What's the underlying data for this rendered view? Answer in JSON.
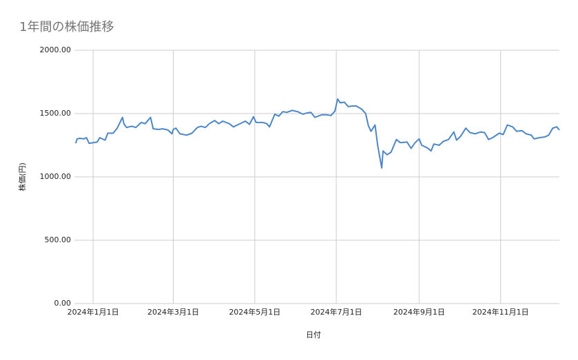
{
  "chart_data": {
    "type": "line",
    "title": "1年間の株価推移",
    "x_label": "日付",
    "y_label": "株価(円)",
    "color": "#4a86c8",
    "grid": true,
    "xlim": [
      "2023-12-18",
      "2024-12-15"
    ],
    "xticks": [
      {
        "value": "2024-01-01",
        "label": "2024年1月1日"
      },
      {
        "value": "2024-03-01",
        "label": "2024年3月1日"
      },
      {
        "value": "2024-05-01",
        "label": "2024年5月1日"
      },
      {
        "value": "2024-07-01",
        "label": "2024年7月1日"
      },
      {
        "value": "2024-09-01",
        "label": "2024年9月1日"
      },
      {
        "value": "2024-11-01",
        "label": "2024年11月1日"
      }
    ],
    "ylim": [
      0,
      2000
    ],
    "yticks": [
      {
        "value": 0,
        "label": "0.00"
      },
      {
        "value": 500,
        "label": "500.00"
      },
      {
        "value": 1000,
        "label": "1000.00"
      },
      {
        "value": 1500,
        "label": "1500.00"
      },
      {
        "value": 2000,
        "label": "2000.00"
      }
    ],
    "x": [
      "2023-12-19",
      "2023-12-20",
      "2023-12-22",
      "2023-12-25",
      "2023-12-27",
      "2023-12-29",
      "2024-01-04",
      "2024-01-06",
      "2024-01-10",
      "2024-01-12",
      "2024-01-16",
      "2024-01-19",
      "2024-01-23",
      "2024-01-24",
      "2024-01-26",
      "2024-01-30",
      "2024-02-02",
      "2024-02-06",
      "2024-02-09",
      "2024-02-13",
      "2024-02-15",
      "2024-02-19",
      "2024-02-22",
      "2024-02-26",
      "2024-02-29",
      "2024-03-01",
      "2024-03-03",
      "2024-03-06",
      "2024-03-11",
      "2024-03-15",
      "2024-03-19",
      "2024-03-22",
      "2024-03-25",
      "2024-03-28",
      "2024-04-01",
      "2024-04-04",
      "2024-04-07",
      "2024-04-12",
      "2024-04-15",
      "2024-04-19",
      "2024-04-24",
      "2024-04-27",
      "2024-04-30",
      "2024-05-02",
      "2024-05-07",
      "2024-05-10",
      "2024-05-12",
      "2024-05-16",
      "2024-05-19",
      "2024-05-22",
      "2024-05-25",
      "2024-05-29",
      "2024-06-02",
      "2024-06-06",
      "2024-06-09",
      "2024-06-12",
      "2024-06-15",
      "2024-06-20",
      "2024-06-24",
      "2024-06-27",
      "2024-06-30",
      "2024-07-02",
      "2024-07-04",
      "2024-07-07",
      "2024-07-10",
      "2024-07-13",
      "2024-07-16",
      "2024-07-20",
      "2024-07-23",
      "2024-07-25",
      "2024-07-27",
      "2024-07-30",
      "2024-08-01",
      "2024-08-04",
      "2024-08-05",
      "2024-08-08",
      "2024-08-11",
      "2024-08-15",
      "2024-08-18",
      "2024-08-23",
      "2024-08-26",
      "2024-08-29",
      "2024-09-01",
      "2024-09-03",
      "2024-09-07",
      "2024-09-10",
      "2024-09-12",
      "2024-09-16",
      "2024-09-19",
      "2024-09-23",
      "2024-09-27",
      "2024-09-29",
      "2024-10-02",
      "2024-10-06",
      "2024-10-09",
      "2024-10-13",
      "2024-10-17",
      "2024-10-20",
      "2024-10-23",
      "2024-10-26",
      "2024-10-31",
      "2024-11-03",
      "2024-11-06",
      "2024-11-10",
      "2024-11-13",
      "2024-11-17",
      "2024-11-20",
      "2024-11-24",
      "2024-11-26",
      "2024-11-30",
      "2024-12-04",
      "2024-12-07",
      "2024-12-10",
      "2024-12-13",
      "2024-12-15"
    ],
    "values": [
      1265,
      1300,
      1305,
      1300,
      1310,
      1265,
      1275,
      1310,
      1290,
      1345,
      1345,
      1385,
      1470,
      1420,
      1390,
      1400,
      1390,
      1430,
      1420,
      1470,
      1380,
      1375,
      1380,
      1370,
      1340,
      1375,
      1385,
      1340,
      1330,
      1345,
      1390,
      1400,
      1390,
      1420,
      1445,
      1420,
      1440,
      1420,
      1395,
      1415,
      1440,
      1415,
      1475,
      1430,
      1430,
      1420,
      1395,
      1495,
      1480,
      1515,
      1510,
      1525,
      1515,
      1495,
      1505,
      1510,
      1470,
      1490,
      1490,
      1485,
      1520,
      1615,
      1585,
      1590,
      1555,
      1560,
      1560,
      1535,
      1500,
      1405,
      1360,
      1410,
      1250,
      1070,
      1205,
      1175,
      1195,
      1295,
      1270,
      1275,
      1225,
      1270,
      1300,
      1250,
      1230,
      1205,
      1260,
      1250,
      1280,
      1295,
      1355,
      1290,
      1320,
      1385,
      1350,
      1340,
      1355,
      1350,
      1295,
      1310,
      1345,
      1335,
      1410,
      1395,
      1360,
      1365,
      1340,
      1330,
      1300,
      1310,
      1315,
      1330,
      1385,
      1395,
      1370
    ]
  }
}
